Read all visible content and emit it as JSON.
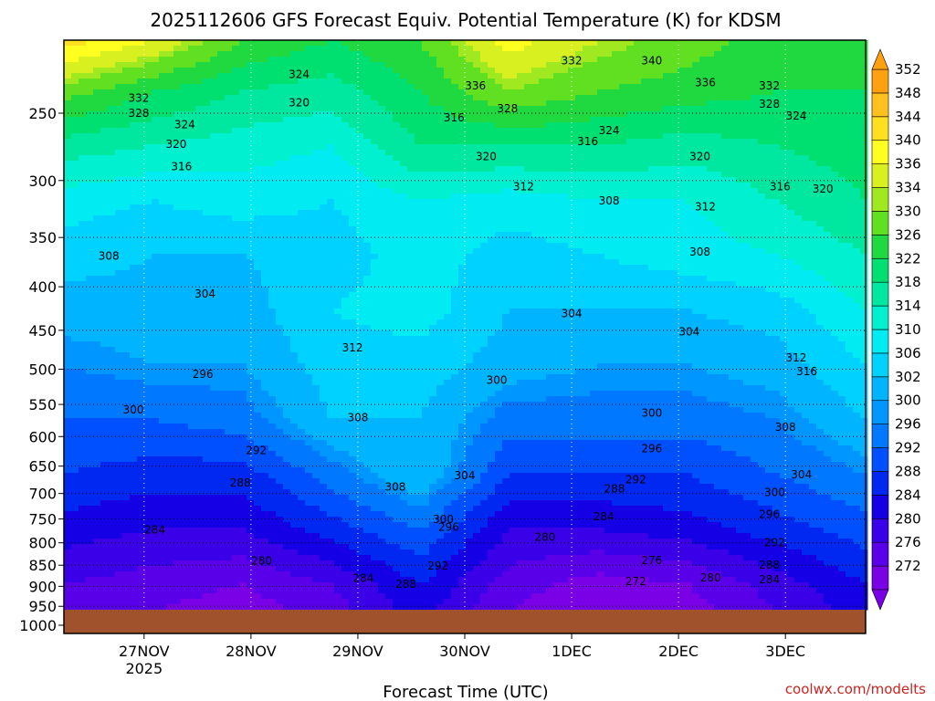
{
  "chart_data": {
    "type": "heatmap",
    "title": "2025112606 GFS Forecast Equiv. Potential Temperature (K) for KDSM",
    "xlabel": "Forecast Time (UTC)",
    "credit": "coolwx.com/modelts",
    "x_ticks": [
      {
        "label": "27NOV",
        "sub": "2025",
        "day": 27
      },
      {
        "label": "28NOV",
        "sub": "",
        "day": 28
      },
      {
        "label": "29NOV",
        "sub": "",
        "day": 29
      },
      {
        "label": "30NOV",
        "sub": "",
        "day": 30
      },
      {
        "label": "1DEC",
        "sub": "",
        "day": 31
      },
      {
        "label": "2DEC",
        "sub": "",
        "day": 32
      },
      {
        "label": "3DEC",
        "sub": "",
        "day": 33
      }
    ],
    "xlim": [
      26.25,
      33.75
    ],
    "y_ticks": [
      "250",
      "300",
      "350",
      "400",
      "450",
      "500",
      "550",
      "600",
      "650",
      "700",
      "750",
      "800",
      "850",
      "900",
      "950",
      "1000"
    ],
    "ylim_hPa": [
      200,
      1000
    ],
    "grid": true,
    "colorbar": {
      "levels": [
        272,
        276,
        280,
        284,
        288,
        292,
        296,
        300,
        302,
        306,
        310,
        314,
        318,
        322,
        326,
        330,
        334,
        336,
        340,
        344,
        348,
        352
      ],
      "colors": [
        "#7a00e6",
        "#5a00e8",
        "#3a00e8",
        "#1500e6",
        "#0028f0",
        "#0050ff",
        "#0078ff",
        "#0096ff",
        "#00b4ff",
        "#00d2ff",
        "#00ecf2",
        "#00f0d0",
        "#00e8a0",
        "#00e070",
        "#20d840",
        "#60e020",
        "#a0e820",
        "#d8f020",
        "#ffff20",
        "#ffe020",
        "#ffc020",
        "#ffa010"
      ]
    },
    "contour_labels": [
      {
        "text": "332",
        "x": 26.95,
        "p": 240
      },
      {
        "text": "328",
        "x": 26.95,
        "p": 250
      },
      {
        "text": "324",
        "x": 27.38,
        "p": 258
      },
      {
        "text": "320",
        "x": 27.3,
        "p": 272
      },
      {
        "text": "316",
        "x": 27.35,
        "p": 289
      },
      {
        "text": "308",
        "x": 26.67,
        "p": 368
      },
      {
        "text": "304",
        "x": 27.57,
        "p": 408
      },
      {
        "text": "300",
        "x": 26.9,
        "p": 558
      },
      {
        "text": "296",
        "x": 27.55,
        "p": 507
      },
      {
        "text": "292",
        "x": 28.05,
        "p": 623
      },
      {
        "text": "288",
        "x": 27.9,
        "p": 680
      },
      {
        "text": "284",
        "x": 27.1,
        "p": 772
      },
      {
        "text": "280",
        "x": 28.1,
        "p": 840
      },
      {
        "text": "324",
        "x": 28.45,
        "p": 225
      },
      {
        "text": "320",
        "x": 28.45,
        "p": 243
      },
      {
        "text": "312",
        "x": 28.95,
        "p": 472
      },
      {
        "text": "308",
        "x": 29.0,
        "p": 570
      },
      {
        "text": "308",
        "x": 29.35,
        "p": 688
      },
      {
        "text": "304",
        "x": 30.0,
        "p": 667
      },
      {
        "text": "300",
        "x": 29.8,
        "p": 751
      },
      {
        "text": "296",
        "x": 29.85,
        "p": 767
      },
      {
        "text": "292",
        "x": 29.75,
        "p": 852
      },
      {
        "text": "288",
        "x": 29.45,
        "p": 895
      },
      {
        "text": "284",
        "x": 29.05,
        "p": 880
      },
      {
        "text": "316",
        "x": 29.9,
        "p": 253
      },
      {
        "text": "336",
        "x": 30.1,
        "p": 232
      },
      {
        "text": "328",
        "x": 30.4,
        "p": 247
      },
      {
        "text": "320",
        "x": 30.2,
        "p": 281
      },
      {
        "text": "312",
        "x": 30.55,
        "p": 305
      },
      {
        "text": "304",
        "x": 31.0,
        "p": 430
      },
      {
        "text": "300",
        "x": 30.3,
        "p": 515
      },
      {
        "text": "332",
        "x": 31.0,
        "p": 217
      },
      {
        "text": "340",
        "x": 31.75,
        "p": 217
      },
      {
        "text": "324",
        "x": 31.35,
        "p": 262
      },
      {
        "text": "316",
        "x": 31.15,
        "p": 270
      },
      {
        "text": "308",
        "x": 31.35,
        "p": 317
      },
      {
        "text": "280",
        "x": 30.75,
        "p": 788
      },
      {
        "text": "276",
        "x": 31.75,
        "p": 839
      },
      {
        "text": "272",
        "x": 31.6,
        "p": 888
      },
      {
        "text": "284",
        "x": 31.3,
        "p": 745
      },
      {
        "text": "288",
        "x": 31.4,
        "p": 691
      },
      {
        "text": "292",
        "x": 31.6,
        "p": 674
      },
      {
        "text": "296",
        "x": 31.75,
        "p": 620
      },
      {
        "text": "300",
        "x": 31.75,
        "p": 563
      },
      {
        "text": "304",
        "x": 32.1,
        "p": 452
      },
      {
        "text": "336",
        "x": 32.25,
        "p": 230
      },
      {
        "text": "320",
        "x": 32.2,
        "p": 281
      },
      {
        "text": "312",
        "x": 32.25,
        "p": 322
      },
      {
        "text": "308",
        "x": 32.2,
        "p": 364
      },
      {
        "text": "280",
        "x": 32.3,
        "p": 879
      },
      {
        "text": "332",
        "x": 32.85,
        "p": 232
      },
      {
        "text": "328",
        "x": 32.85,
        "p": 244
      },
      {
        "text": "324",
        "x": 33.1,
        "p": 252
      },
      {
        "text": "316",
        "x": 32.95,
        "p": 305
      },
      {
        "text": "320",
        "x": 33.35,
        "p": 307
      },
      {
        "text": "312",
        "x": 33.1,
        "p": 485
      },
      {
        "text": "316",
        "x": 33.2,
        "p": 503
      },
      {
        "text": "308",
        "x": 33.0,
        "p": 585
      },
      {
        "text": "304",
        "x": 33.15,
        "p": 665
      },
      {
        "text": "300",
        "x": 32.9,
        "p": 698
      },
      {
        "text": "296",
        "x": 32.85,
        "p": 741
      },
      {
        "text": "292",
        "x": 32.9,
        "p": 800
      },
      {
        "text": "288",
        "x": 32.85,
        "p": 850
      },
      {
        "text": "284",
        "x": 32.85,
        "p": 884
      }
    ]
  }
}
